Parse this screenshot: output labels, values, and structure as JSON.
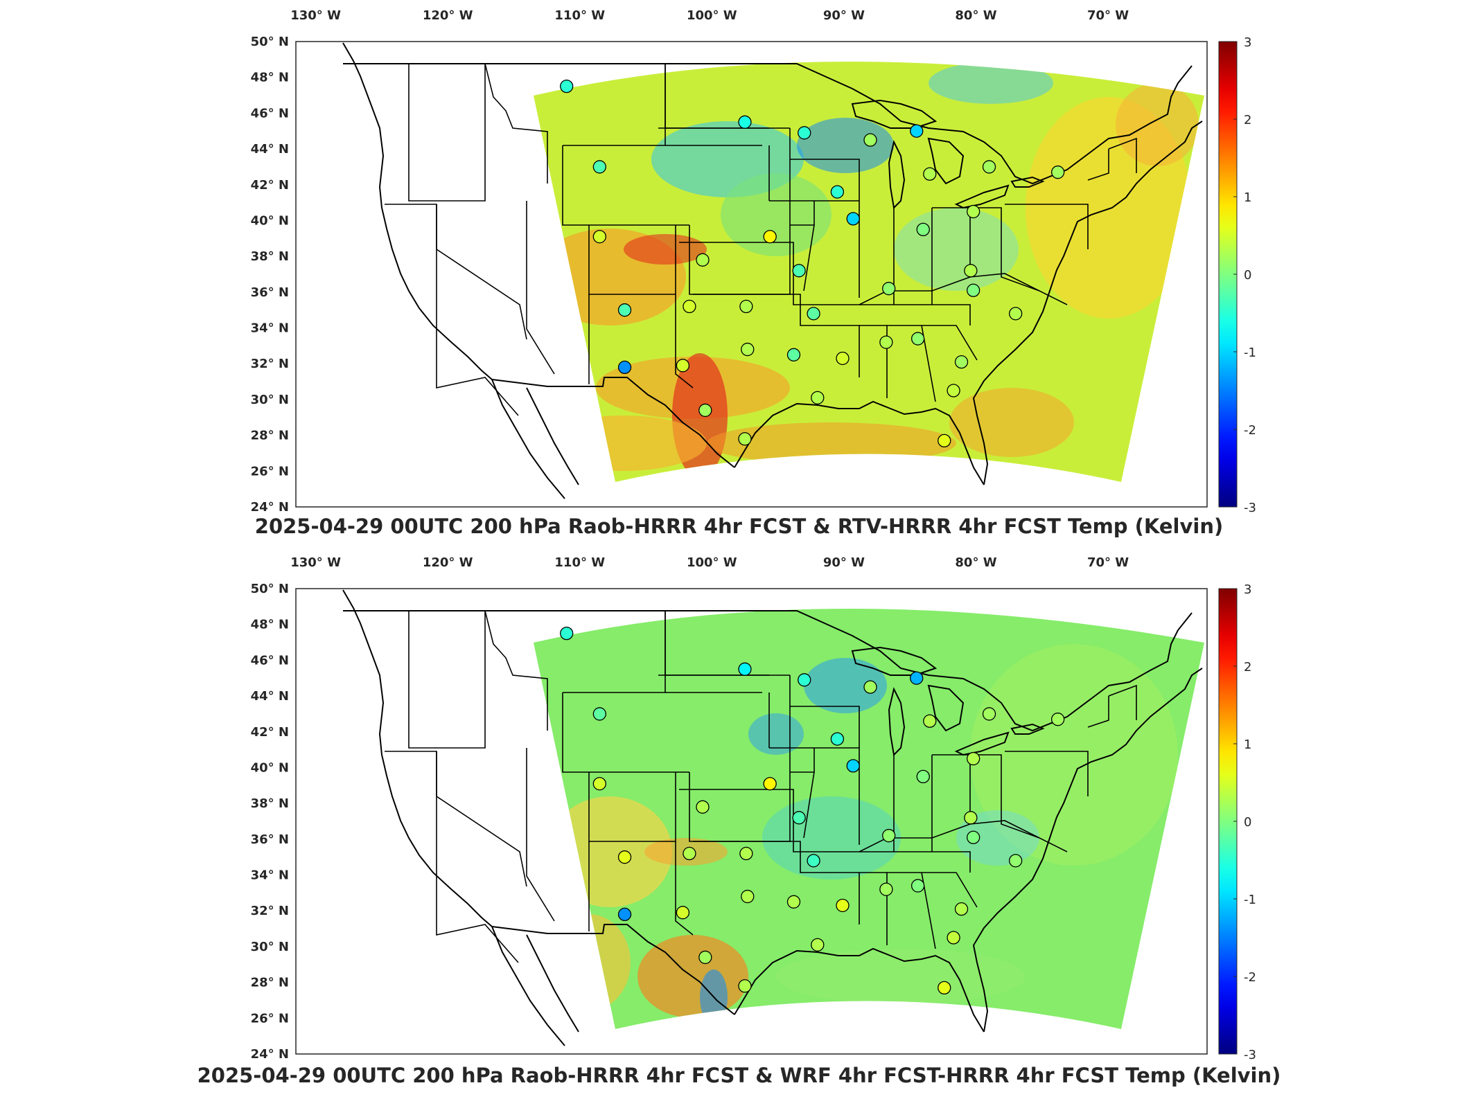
{
  "panels": [
    {
      "title": "2025-04-29 00UTC 200 hPa Raob-HRRR 4hr FCST & RTV-HRRR 4hr FCST Temp (Kelvin)",
      "variant": "warm"
    },
    {
      "title": "2025-04-29 00UTC 200 hPa Raob-HRRR 4hr FCST & WRF 4hr FCST-HRRR 4hr FCST Temp (Kelvin)",
      "variant": "mixed"
    }
  ],
  "lon_ticks": [
    {
      "value": -130,
      "label": "130° W"
    },
    {
      "value": -120,
      "label": "120° W"
    },
    {
      "value": -110,
      "label": "110° W"
    },
    {
      "value": -100,
      "label": "100° W"
    },
    {
      "value": -90,
      "label": "90° W"
    },
    {
      "value": -80,
      "label": "80° W"
    },
    {
      "value": -70,
      "label": "70° W"
    }
  ],
  "lat_ticks": [
    {
      "value": 50,
      "label": "50° N"
    },
    {
      "value": 48,
      "label": "48° N"
    },
    {
      "value": 46,
      "label": "46° N"
    },
    {
      "value": 44,
      "label": "44° N"
    },
    {
      "value": 42,
      "label": "42° N"
    },
    {
      "value": 40,
      "label": "40° N"
    },
    {
      "value": 38,
      "label": "38° N"
    },
    {
      "value": 36,
      "label": "36° N"
    },
    {
      "value": 34,
      "label": "34° N"
    },
    {
      "value": 32,
      "label": "32° N"
    },
    {
      "value": 30,
      "label": "30° N"
    },
    {
      "value": 28,
      "label": "28° N"
    },
    {
      "value": 26,
      "label": "26° N"
    },
    {
      "value": 24,
      "label": "24° N"
    }
  ],
  "colorbar": {
    "min": -3,
    "max": 3,
    "ticks": [
      {
        "value": 3,
        "label": "3"
      },
      {
        "value": 2,
        "label": "2"
      },
      {
        "value": 1,
        "label": "1"
      },
      {
        "value": 0,
        "label": "0"
      },
      {
        "value": -1,
        "label": "-1"
      },
      {
        "value": -2,
        "label": "-2"
      },
      {
        "value": -3,
        "label": "-3"
      }
    ],
    "colormap": "jet"
  },
  "stations": [
    {
      "lon": -111.0,
      "lat": 47.5,
      "v1": -0.5,
      "v2": -0.5
    },
    {
      "lon": -97.5,
      "lat": 45.5,
      "v1": -0.6,
      "v2": -0.8
    },
    {
      "lon": -93.0,
      "lat": 44.9,
      "v1": -0.5,
      "v2": -0.5
    },
    {
      "lon": -84.5,
      "lat": 45.0,
      "v1": -1.0,
      "v2": -1.2
    },
    {
      "lon": -88.0,
      "lat": 44.5,
      "v1": 0.2,
      "v2": 0.2
    },
    {
      "lon": -108.5,
      "lat": 43.0,
      "v1": -0.3,
      "v2": -0.2
    },
    {
      "lon": -83.5,
      "lat": 42.6,
      "v1": 0.3,
      "v2": 0.3
    },
    {
      "lon": -79.0,
      "lat": 43.0,
      "v1": 0.2,
      "v2": 0.2
    },
    {
      "lon": -73.8,
      "lat": 42.7,
      "v1": 0.2,
      "v2": 0.2
    },
    {
      "lon": -90.5,
      "lat": 41.6,
      "v1": -0.5,
      "v2": -0.5
    },
    {
      "lon": -89.3,
      "lat": 40.1,
      "v1": -1.0,
      "v2": -1.0
    },
    {
      "lon": -80.2,
      "lat": 40.5,
      "v1": 0.3,
      "v2": 0.3
    },
    {
      "lon": -84.0,
      "lat": 39.5,
      "v1": 0.0,
      "v2": 0.0
    },
    {
      "lon": -108.5,
      "lat": 39.1,
      "v1": 0.5,
      "v2": 0.5
    },
    {
      "lon": -95.6,
      "lat": 39.1,
      "v1": 0.8,
      "v2": 0.8
    },
    {
      "lon": -100.7,
      "lat": 37.8,
      "v1": 0.3,
      "v2": 0.3
    },
    {
      "lon": -93.4,
      "lat": 37.2,
      "v1": -0.3,
      "v2": -0.3
    },
    {
      "lon": -80.4,
      "lat": 37.2,
      "v1": 0.3,
      "v2": 0.3
    },
    {
      "lon": -86.6,
      "lat": 36.2,
      "v1": 0.1,
      "v2": 0.1
    },
    {
      "lon": -80.2,
      "lat": 36.1,
      "v1": 0.0,
      "v2": 0.0
    },
    {
      "lon": -106.6,
      "lat": 35.0,
      "v1": -0.3,
      "v2": 0.6
    },
    {
      "lon": -101.7,
      "lat": 35.2,
      "v1": 0.5,
      "v2": 0.3
    },
    {
      "lon": -97.4,
      "lat": 35.2,
      "v1": 0.3,
      "v2": 0.3
    },
    {
      "lon": -92.3,
      "lat": 34.8,
      "v1": -0.2,
      "v2": -0.4
    },
    {
      "lon": -77.0,
      "lat": 34.8,
      "v1": 0.3,
      "v2": 0.1
    },
    {
      "lon": -86.8,
      "lat": 33.2,
      "v1": 0.3,
      "v2": 0.2
    },
    {
      "lon": -84.4,
      "lat": 33.4,
      "v1": 0.1,
      "v2": 0.0
    },
    {
      "lon": -97.3,
      "lat": 32.8,
      "v1": 0.3,
      "v2": 0.3
    },
    {
      "lon": -93.8,
      "lat": 32.5,
      "v1": -0.2,
      "v2": 0.3
    },
    {
      "lon": -90.1,
      "lat": 32.3,
      "v1": 0.5,
      "v2": 0.6
    },
    {
      "lon": -81.1,
      "lat": 32.1,
      "v1": 0.2,
      "v2": 0.3
    },
    {
      "lon": -106.6,
      "lat": 31.8,
      "v1": -1.4,
      "v2": -1.4
    },
    {
      "lon": -102.2,
      "lat": 31.9,
      "v1": 0.5,
      "v2": 0.5
    },
    {
      "lon": -100.5,
      "lat": 29.4,
      "v1": 0.2,
      "v2": 0.2
    },
    {
      "lon": -92.0,
      "lat": 30.1,
      "v1": 0.3,
      "v2": 0.3
    },
    {
      "lon": -81.7,
      "lat": 30.5,
      "v1": 0.4,
      "v2": 0.4
    },
    {
      "lon": -97.5,
      "lat": 27.8,
      "v1": 0.3,
      "v2": 0.3
    },
    {
      "lon": -82.4,
      "lat": 27.7,
      "v1": 0.6,
      "v2": 0.6
    }
  ]
}
